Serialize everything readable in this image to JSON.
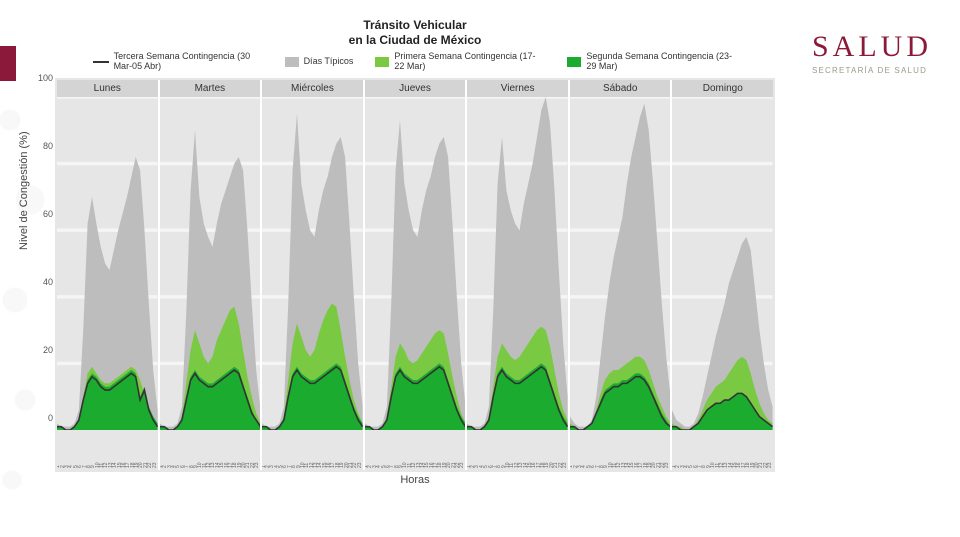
{
  "logo": {
    "main": "SALUD",
    "sub": "SECRETARÍA DE SALUD",
    "color": "#8b1a3a"
  },
  "title_line1": "Tránsito Vehicular",
  "title_line2": "en la Ciudad de México",
  "x_label": "Horas",
  "y_label": "Nivel de Congestión (%)",
  "legend": [
    {
      "key": "s3",
      "label": "Tercera Semana Contingencia (30 Mar-05 Abr)",
      "type": "line",
      "color": "#333333"
    },
    {
      "key": "typ",
      "label": "Días Típicos",
      "type": "fill",
      "color": "#bdbdbd"
    },
    {
      "key": "s1",
      "label": "Primera Semana Contingencia (17-22 Mar)",
      "type": "fill",
      "color": "#7ac943"
    },
    {
      "key": "s2",
      "label": "Segunda Semana Contingencia (23-29 Mar)",
      "type": "fill",
      "color": "#1aab2f"
    }
  ],
  "ylim": [
    0,
    100
  ],
  "ytick_step": 20,
  "x_hours": [
    0,
    1,
    2,
    3,
    4,
    5,
    6,
    7,
    8,
    9,
    10,
    11,
    12,
    13,
    14,
    15,
    16,
    17,
    18,
    19,
    20,
    21,
    22,
    23
  ],
  "series_order": [
    "typ",
    "s1",
    "s2",
    "s3"
  ],
  "colors": {
    "typ": "#bdbdbd",
    "s1": "#7ac943",
    "s2": "#1aab2f",
    "s3": "#333333",
    "panel_bg": "#e6e6e6",
    "grid": "#f5f5f5",
    "strip": "#d4d4d4"
  },
  "days": [
    {
      "name": "Lunes",
      "typ": [
        2,
        1,
        1,
        1,
        2,
        6,
        30,
        62,
        70,
        62,
        55,
        50,
        48,
        54,
        60,
        65,
        70,
        76,
        82,
        78,
        60,
        38,
        18,
        6
      ],
      "s1": [
        1,
        1,
        0,
        0,
        1,
        3,
        10,
        17,
        19,
        17,
        15,
        14,
        14,
        15,
        16,
        17,
        18,
        19,
        18,
        15,
        11,
        7,
        4,
        2
      ],
      "s2": [
        1,
        1,
        0,
        0,
        1,
        3,
        9,
        15,
        17,
        16,
        14,
        13,
        13,
        14,
        15,
        16,
        17,
        18,
        17,
        10,
        13,
        7,
        4,
        2
      ],
      "s3": [
        1,
        1,
        0,
        0,
        1,
        3,
        9,
        14,
        16,
        15,
        13,
        12,
        12,
        13,
        14,
        15,
        16,
        17,
        16,
        9,
        12,
        6,
        3,
        1
      ]
    },
    {
      "name": "Martes",
      "typ": [
        2,
        1,
        1,
        1,
        2,
        7,
        35,
        72,
        90,
        70,
        62,
        58,
        55,
        62,
        68,
        72,
        76,
        80,
        82,
        78,
        60,
        38,
        18,
        6
      ],
      "s1": [
        1,
        1,
        0,
        0,
        1,
        4,
        14,
        24,
        30,
        26,
        22,
        20,
        22,
        27,
        30,
        33,
        36,
        37,
        32,
        24,
        16,
        10,
        5,
        2
      ],
      "s2": [
        1,
        1,
        0,
        0,
        1,
        3,
        10,
        16,
        18,
        16,
        15,
        14,
        14,
        15,
        16,
        17,
        18,
        19,
        18,
        14,
        10,
        6,
        3,
        1
      ],
      "s3": [
        1,
        1,
        0,
        0,
        1,
        3,
        9,
        15,
        17,
        15,
        14,
        13,
        13,
        14,
        15,
        16,
        17,
        18,
        17,
        13,
        9,
        5,
        3,
        1
      ]
    },
    {
      "name": "Miércoles",
      "typ": [
        2,
        1,
        1,
        1,
        2,
        7,
        38,
        78,
        95,
        74,
        66,
        60,
        58,
        66,
        72,
        76,
        82,
        86,
        88,
        82,
        62,
        40,
        20,
        7
      ],
      "s1": [
        1,
        1,
        0,
        0,
        1,
        4,
        15,
        26,
        32,
        28,
        24,
        22,
        24,
        29,
        33,
        36,
        38,
        37,
        30,
        22,
        15,
        9,
        5,
        2
      ],
      "s2": [
        1,
        1,
        0,
        0,
        1,
        3,
        11,
        17,
        19,
        17,
        16,
        15,
        15,
        16,
        17,
        18,
        19,
        20,
        19,
        15,
        11,
        7,
        4,
        2
      ],
      "s3": [
        1,
        1,
        0,
        0,
        1,
        3,
        10,
        16,
        18,
        16,
        15,
        14,
        14,
        15,
        16,
        17,
        18,
        19,
        18,
        14,
        10,
        6,
        3,
        1
      ]
    },
    {
      "name": "Jueves",
      "typ": [
        2,
        1,
        1,
        1,
        2,
        7,
        38,
        78,
        93,
        74,
        66,
        60,
        58,
        66,
        72,
        76,
        82,
        86,
        88,
        82,
        62,
        40,
        20,
        7
      ],
      "s1": [
        1,
        1,
        0,
        0,
        1,
        4,
        13,
        22,
        26,
        24,
        21,
        20,
        21,
        23,
        25,
        27,
        29,
        30,
        29,
        23,
        16,
        10,
        5,
        2
      ],
      "s2": [
        1,
        1,
        0,
        0,
        1,
        3,
        11,
        17,
        19,
        17,
        16,
        15,
        15,
        16,
        17,
        18,
        19,
        20,
        19,
        15,
        11,
        7,
        4,
        2
      ],
      "s3": [
        1,
        1,
        0,
        0,
        1,
        3,
        10,
        16,
        18,
        16,
        15,
        14,
        14,
        15,
        16,
        17,
        18,
        19,
        18,
        14,
        10,
        6,
        3,
        1
      ]
    },
    {
      "name": "Viernes",
      "typ": [
        2,
        1,
        1,
        1,
        2,
        7,
        36,
        74,
        88,
        72,
        66,
        62,
        60,
        68,
        74,
        80,
        88,
        96,
        100,
        92,
        72,
        48,
        26,
        10
      ],
      "s1": [
        1,
        1,
        0,
        0,
        1,
        4,
        13,
        22,
        26,
        24,
        22,
        21,
        22,
        24,
        26,
        28,
        30,
        31,
        30,
        25,
        18,
        11,
        6,
        3
      ],
      "s2": [
        1,
        1,
        0,
        0,
        1,
        3,
        11,
        17,
        19,
        17,
        16,
        15,
        15,
        16,
        17,
        18,
        19,
        20,
        19,
        15,
        11,
        7,
        4,
        2
      ],
      "s3": [
        1,
        1,
        0,
        0,
        1,
        3,
        10,
        16,
        18,
        16,
        15,
        14,
        14,
        15,
        16,
        17,
        18,
        19,
        18,
        14,
        10,
        6,
        3,
        1
      ]
    },
    {
      "name": "Sábado",
      "typ": [
        4,
        2,
        1,
        1,
        1,
        3,
        10,
        22,
        34,
        44,
        52,
        58,
        64,
        74,
        82,
        88,
        94,
        98,
        90,
        74,
        56,
        38,
        22,
        10
      ],
      "s1": [
        2,
        1,
        0,
        0,
        1,
        2,
        6,
        11,
        15,
        17,
        18,
        18,
        19,
        20,
        21,
        22,
        22,
        21,
        18,
        14,
        10,
        7,
        4,
        2
      ],
      "s2": [
        1,
        1,
        0,
        0,
        1,
        2,
        5,
        9,
        12,
        13,
        14,
        14,
        15,
        15,
        16,
        17,
        17,
        16,
        14,
        11,
        8,
        5,
        3,
        1
      ],
      "s3": [
        1,
        1,
        0,
        0,
        1,
        2,
        5,
        8,
        11,
        12,
        13,
        13,
        14,
        14,
        15,
        16,
        16,
        15,
        13,
        10,
        7,
        4,
        2,
        1
      ]
    },
    {
      "name": "Domingo",
      "typ": [
        6,
        3,
        2,
        1,
        1,
        2,
        5,
        10,
        16,
        22,
        28,
        33,
        38,
        44,
        48,
        52,
        56,
        58,
        54,
        42,
        30,
        20,
        12,
        7
      ],
      "s1": [
        2,
        1,
        1,
        0,
        0,
        1,
        3,
        6,
        9,
        11,
        13,
        14,
        15,
        17,
        19,
        21,
        22,
        21,
        17,
        12,
        8,
        5,
        3,
        2
      ],
      "s2": [
        1,
        1,
        0,
        0,
        0,
        1,
        2,
        4,
        6,
        7,
        8,
        8,
        9,
        9,
        10,
        11,
        11,
        10,
        8,
        6,
        4,
        3,
        2,
        1
      ],
      "s3": [
        1,
        1,
        0,
        0,
        0,
        1,
        2,
        4,
        6,
        7,
        8,
        8,
        9,
        9,
        10,
        11,
        11,
        10,
        8,
        6,
        4,
        3,
        2,
        1
      ]
    }
  ],
  "title_fontsize": 12,
  "legend_fontsize": 9,
  "axis_fontsize": 11,
  "tick_fontsize": 9,
  "line_width": 1.6,
  "fill_opacity": 1.0
}
